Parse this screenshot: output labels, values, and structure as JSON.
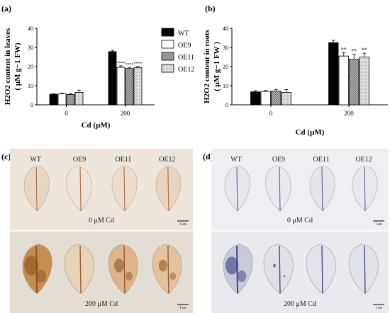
{
  "chart_data": [
    {
      "type": "bar",
      "panel_label": "(a)",
      "ylabel_line1": "H2O2 content in leaves",
      "ylabel_line2": "( μM g−1 FW)",
      "xlabel": "Cd (μM)",
      "categories": [
        "0",
        "200"
      ],
      "ylim": [
        0,
        40
      ],
      "yticks": [
        "0",
        "10",
        "20",
        "30",
        "40"
      ],
      "series": [
        {
          "name": "WT",
          "color": "#000000",
          "pattern": "solid",
          "values": [
            5.5,
            27.8
          ],
          "errors": [
            0.3,
            0.7
          ],
          "marks": [
            "",
            ""
          ]
        },
        {
          "name": "OE9",
          "color": "#ffffff",
          "pattern": "open",
          "values": [
            5.8,
            19.6
          ],
          "errors": [
            0.3,
            0.8
          ],
          "marks": [
            "",
            "****"
          ]
        },
        {
          "name": "OE11",
          "color": "#bdbdbd",
          "pattern": "cross",
          "values": [
            5.4,
            19.0
          ],
          "errors": [
            0.4,
            0.6
          ],
          "marks": [
            "",
            "****"
          ]
        },
        {
          "name": "OE12",
          "color": "#d9d9d9",
          "pattern": "light",
          "values": [
            6.5,
            19.5
          ],
          "errors": [
            1.2,
            0.6
          ],
          "marks": [
            "",
            "****"
          ]
        }
      ],
      "legend": "right"
    },
    {
      "type": "bar",
      "panel_label": "(b)",
      "ylabel_line1": "H2O2 content in roots",
      "ylabel_line2": "( μM g−1 FW )",
      "xlabel": "Cd (μM)",
      "categories": [
        "0",
        "200"
      ],
      "ylim": [
        0,
        40
      ],
      "yticks": [
        "0",
        "10",
        "20",
        "30",
        "40"
      ],
      "series": [
        {
          "name": "WT",
          "color": "#000000",
          "pattern": "solid",
          "values": [
            6.8,
            32.5
          ],
          "errors": [
            0.6,
            1.2
          ],
          "marks": [
            "",
            ""
          ]
        },
        {
          "name": "OE9",
          "color": "#ffffff",
          "pattern": "open",
          "values": [
            7.0,
            25.5
          ],
          "errors": [
            0.5,
            1.8
          ],
          "marks": [
            "",
            "**"
          ]
        },
        {
          "name": "OE11",
          "color": "#bdbdbd",
          "pattern": "cross",
          "values": [
            7.2,
            23.8
          ],
          "errors": [
            0.9,
            2.6
          ],
          "marks": [
            "",
            "**"
          ]
        },
        {
          "name": "OE12",
          "color": "#d9d9d9",
          "pattern": "light",
          "values": [
            6.5,
            25.0
          ],
          "errors": [
            1.5,
            2.0
          ],
          "marks": [
            "",
            "**"
          ]
        }
      ],
      "legend": "none"
    }
  ],
  "photos": [
    {
      "panel_label": "(c)",
      "labels": [
        "WT",
        "OE9",
        "OE11",
        "OE12"
      ],
      "top_caption": "0 μM Cd",
      "bottom_caption": "200 μM Cd",
      "scale_label": "1 cm",
      "stain": "DAB",
      "stain_color": "#8a4a1a"
    },
    {
      "panel_label": "(d)",
      "labels": [
        "WT",
        "OE9",
        "OE11",
        "OE12"
      ],
      "top_caption": "0 μM Cd",
      "bottom_caption": "200 μM Cd",
      "scale_label": "1 cm",
      "stain": "NBT",
      "stain_color": "#2b2f7a"
    }
  ]
}
